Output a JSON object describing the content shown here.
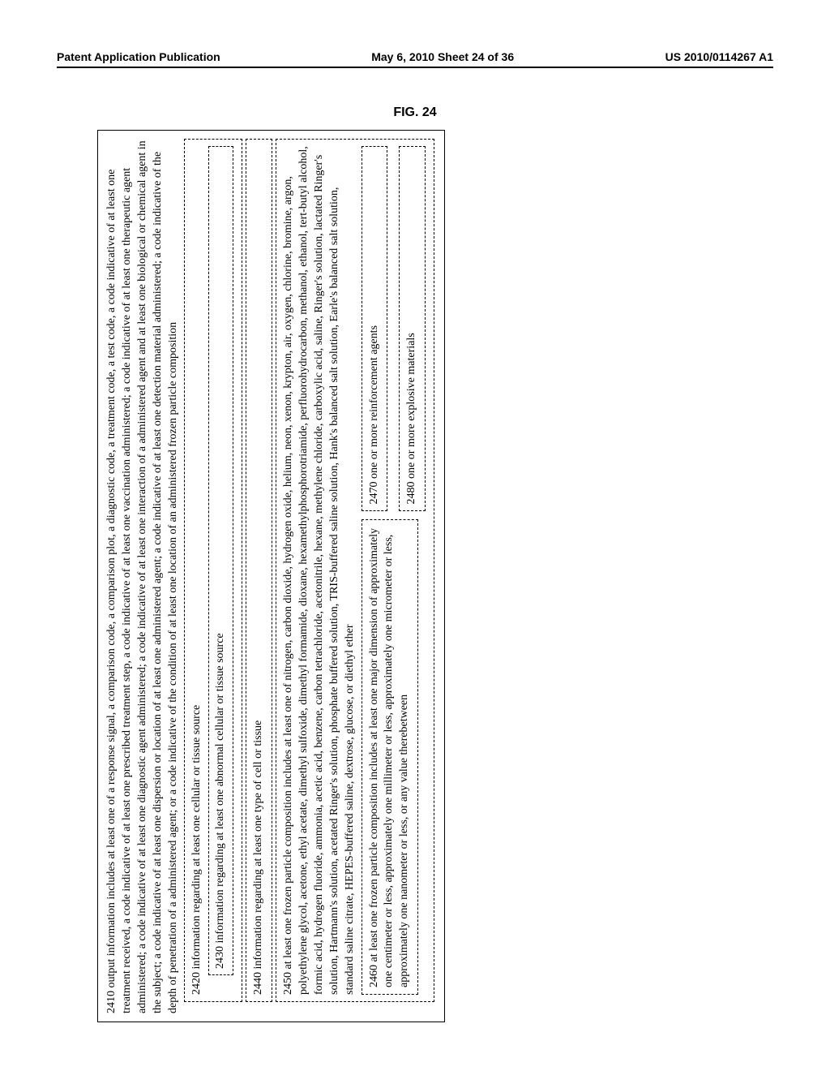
{
  "header": {
    "left": "Patent Application Publication",
    "center": "May 6, 2010  Sheet 24 of 36",
    "right": "US 2010/0114267 A1"
  },
  "figure_label": "FIG. 24",
  "box2410": "2410  output information includes at least one of a response signal, a comparison code, a comparison plot, a diagnostic code, a treatment code, a test code, a code indicative of at least one treatment received, a code indicative of at least one prescribed treatment step, a code indicative of at least one vaccination administered; a code indicative of at least one therapeutic agent administered; a code indicative of at least one diagnostic agent administered; a code indicative of at least one interaction of a administered agent and at least one biological or chemical agent in the subject; a code indicative of at least one dispersion or location of at least one administered agent; a code indicative of at least one detection material administered; a code indicative of the depth of penetration of a administered agent; or a code indicative of the condition of at least one location of an administered frozen particle composition",
  "box2420": "2420 information regarding at least one cellular or tissue source",
  "box2430": "2430 information regarding at least one abnormal cellular or tissue source",
  "box2440": "2440 information regarding at least one type of cell or tissue",
  "box2450": "2450 at least one frozen particle composition includes at least one of nitrogen, carbon dioxide, hydrogen oxide, helium, neon, xenon, krypton, air, oxygen, chlorine, bromine, argon, polyethylene glycol, acetone, ethyl acetate, dimethyl sulfoxide, dimethyl formamide, dioxane, hexamethylphosphorotriamide, perfluorohydrocarbon, methanol, ethanol, tert-butyl alcohol, formic acid, hydrogen fluoride, ammonia, acetic acid, benzene, carbon tetrachloride, acetonitrile, hexane, methylene chloride, carboxylic acid, saline, Ringer's solution, lactated Ringer's solution, Hartmann's solution, acetated Ringer's solution, phosphate buffered solution, TRIS-buffered saline solution, Hank's balanced salt solution, Earle's balanced salt solution, standard saline citrate, HEPES-buffered saline, dextrose, glucose, or diethyl ether",
  "box2460": "2460 at least one frozen particle composition includes at least one major dimension of approximately one centimeter or less, approximately one millimeter or less, approximately one micrometer or less, approximately one nanometer or less, or any value therebetween",
  "box2470": "2470 one or more reinforcement agents",
  "box2480": "2480 one or more explosive materials"
}
